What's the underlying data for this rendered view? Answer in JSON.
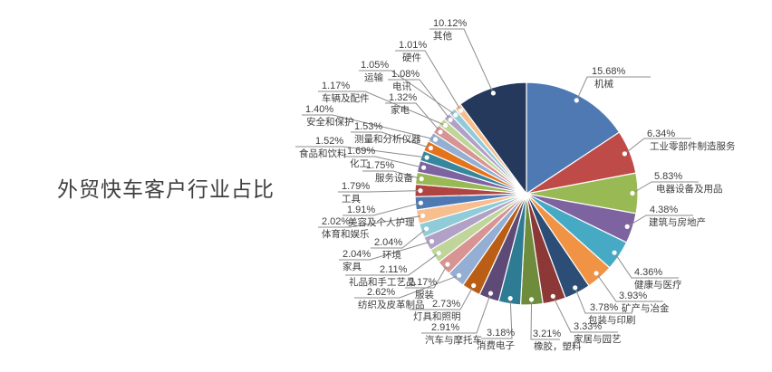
{
  "page": {
    "background": "#FFFFFF"
  },
  "title": "外贸快车客户行业占比",
  "chart_data": {
    "type": "pie",
    "title": "外贸快车客户行业占比",
    "unit": "percent",
    "legend_position": "none",
    "start_angle": "12-o-clock",
    "direction": "clockwise",
    "total": 100.0,
    "slices": [
      {
        "label": "机械",
        "value": 15.68,
        "display": "15.68%",
        "color": "#4E79B2"
      },
      {
        "label": "工业零部件制造服务",
        "value": 6.34,
        "display": "6.34%",
        "color": "#BE4B48"
      },
      {
        "label": "电器设备及用品",
        "value": 5.83,
        "display": "5.83%",
        "color": "#98B954"
      },
      {
        "label": "建筑与房地产",
        "value": 4.38,
        "display": "4.38%",
        "color": "#7E63A1"
      },
      {
        "label": "健康与医疗",
        "value": 4.36,
        "display": "4.36%",
        "color": "#46AAC5"
      },
      {
        "label": "矿产与冶金",
        "value": 3.93,
        "display": "3.93%",
        "color": "#F09345"
      },
      {
        "label": "包装与印刷",
        "value": 3.78,
        "display": "3.78%",
        "color": "#2C4D75"
      },
      {
        "label": "家居与园艺",
        "value": 3.33,
        "display": "3.33%",
        "color": "#8C3836"
      },
      {
        "label": "橡胶，塑料",
        "value": 3.21,
        "display": "3.21%",
        "color": "#6E8C3C"
      },
      {
        "label": "消费电子",
        "value": 3.18,
        "display": "3.18%",
        "color": "#2E7C93"
      },
      {
        "label": "汽车与摩托车",
        "value": 2.91,
        "display": "2.91%",
        "color": "#5D4A77"
      },
      {
        "label": "灯具和照明",
        "value": 2.73,
        "display": "2.73%",
        "color": "#BA5E15"
      },
      {
        "label": "纺织及皮革制品",
        "value": 2.62,
        "display": "2.62%",
        "color": "#94AFD3"
      },
      {
        "label": "服装",
        "value": 2.17,
        "display": "2.17%",
        "color": "#D79492"
      },
      {
        "label": "礼品和手工艺品",
        "value": 2.11,
        "display": "2.11%",
        "color": "#BFD59A"
      },
      {
        "label": "家具",
        "value": 2.04,
        "display": "2.04%",
        "color": "#B1A1C6"
      },
      {
        "label": "环境",
        "value": 2.04,
        "display": "2.04%",
        "color": "#90CBDA"
      },
      {
        "label": "体育和娱乐",
        "value": 2.02,
        "display": "2.02%",
        "color": "#F8BE8E"
      },
      {
        "label": "美容及个人护理",
        "value": 1.91,
        "display": "1.91%",
        "color": "#4E79B2"
      },
      {
        "label": "工具",
        "value": 1.79,
        "display": "1.79%",
        "color": "#AF4441"
      },
      {
        "label": "服务设备",
        "value": 1.75,
        "display": "1.75%",
        "color": "#98B954"
      },
      {
        "label": "化工",
        "value": 1.69,
        "display": "1.69%",
        "color": "#7E63A1"
      },
      {
        "label": "食品和饮料",
        "value": 1.52,
        "display": "1.52%",
        "color": "#35879E"
      },
      {
        "label": "测量和分析仪器",
        "value": 1.53,
        "display": "1.53%",
        "color": "#E4731C"
      },
      {
        "label": "安全和保护",
        "value": 1.4,
        "display": "1.40%",
        "color": "#94AFD3"
      },
      {
        "label": "家电",
        "value": 1.32,
        "display": "1.32%",
        "color": "#D79492"
      },
      {
        "label": "车辆及配件",
        "value": 1.17,
        "display": "1.17%",
        "color": "#BFD59A"
      },
      {
        "label": "电讯",
        "value": 1.08,
        "display": "1.08%",
        "color": "#B1A1C6"
      },
      {
        "label": "运输",
        "value": 1.05,
        "display": "1.05%",
        "color": "#90CBDA"
      },
      {
        "label": "硬件",
        "value": 1.01,
        "display": "1.01%",
        "color": "#F8BE8E"
      },
      {
        "label": "其他",
        "value": 10.12,
        "display": "10.12%",
        "color": "#24395B"
      }
    ],
    "leader_line_color": "#8C8C8C",
    "slice_border_color": "#FFFFFF",
    "label_text_color": "#3E3E3E",
    "title_text_color": "#3F3F3F"
  }
}
